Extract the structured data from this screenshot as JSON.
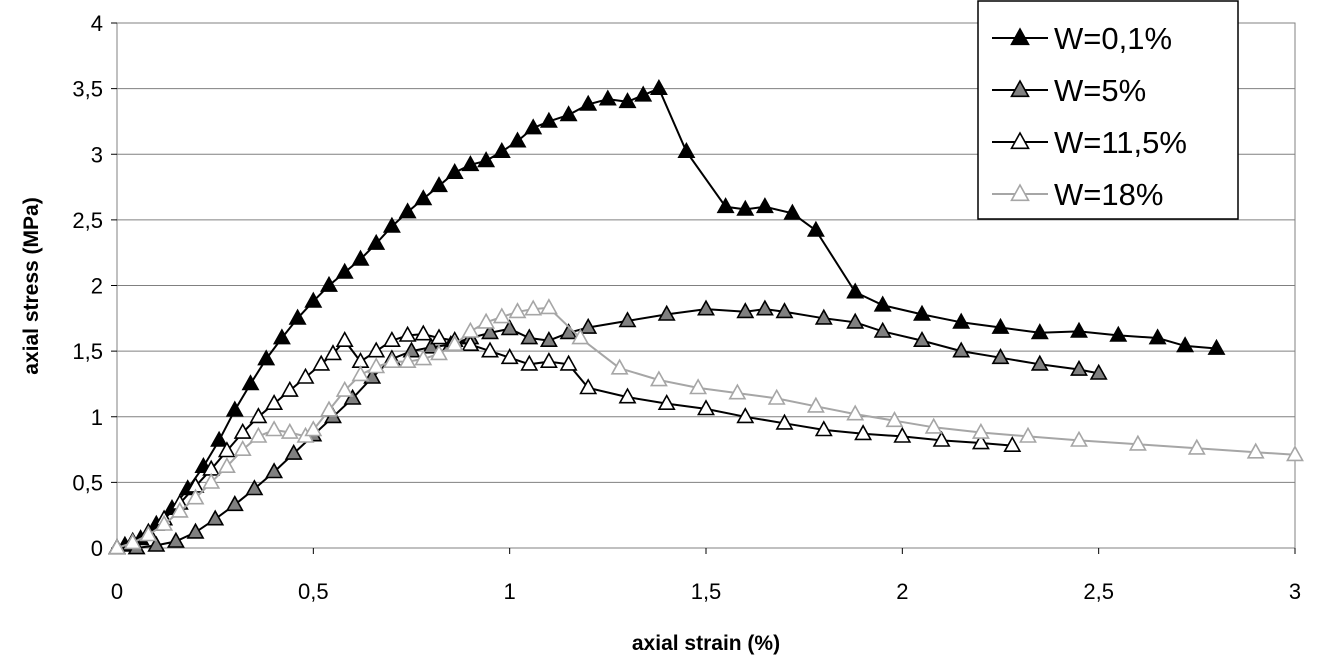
{
  "chart_data": {
    "type": "line",
    "title": "",
    "xlabel": "axial strain (%)",
    "ylabel": "axial stress (MPa)",
    "xlim": [
      0,
      3
    ],
    "ylim": [
      0,
      4
    ],
    "x_ticks": [
      "0",
      "0,5",
      "1",
      "1,5",
      "2",
      "2,5",
      "3"
    ],
    "y_ticks": [
      "0",
      "0,5",
      "1",
      "1,5",
      "2",
      "2,5",
      "3",
      "3,5",
      "4"
    ],
    "grid": "horizontal",
    "legend_position": "top-right",
    "series": [
      {
        "name": "W=0,1%",
        "color": "#000000",
        "marker": "filled-triangle",
        "marker_fill": "#000000",
        "points": [
          [
            0,
            0
          ],
          [
            0.02,
            0.02
          ],
          [
            0.06,
            0.07
          ],
          [
            0.1,
            0.18
          ],
          [
            0.14,
            0.3
          ],
          [
            0.18,
            0.45
          ],
          [
            0.22,
            0.62
          ],
          [
            0.26,
            0.82
          ],
          [
            0.3,
            1.05
          ],
          [
            0.34,
            1.25
          ],
          [
            0.38,
            1.44
          ],
          [
            0.42,
            1.6
          ],
          [
            0.46,
            1.75
          ],
          [
            0.5,
            1.88
          ],
          [
            0.54,
            2.0
          ],
          [
            0.58,
            2.1
          ],
          [
            0.62,
            2.2
          ],
          [
            0.66,
            2.32
          ],
          [
            0.7,
            2.45
          ],
          [
            0.74,
            2.56
          ],
          [
            0.78,
            2.66
          ],
          [
            0.82,
            2.76
          ],
          [
            0.86,
            2.86
          ],
          [
            0.9,
            2.92
          ],
          [
            0.94,
            2.95
          ],
          [
            0.98,
            3.02
          ],
          [
            1.02,
            3.1
          ],
          [
            1.06,
            3.2
          ],
          [
            1.1,
            3.25
          ],
          [
            1.15,
            3.3
          ],
          [
            1.2,
            3.38
          ],
          [
            1.25,
            3.42
          ],
          [
            1.3,
            3.4
          ],
          [
            1.34,
            3.45
          ],
          [
            1.38,
            3.5
          ],
          [
            1.45,
            3.02
          ],
          [
            1.55,
            2.6
          ],
          [
            1.6,
            2.58
          ],
          [
            1.65,
            2.6
          ],
          [
            1.72,
            2.55
          ],
          [
            1.78,
            2.42
          ],
          [
            1.88,
            1.95
          ],
          [
            1.95,
            1.85
          ],
          [
            2.05,
            1.78
          ],
          [
            2.15,
            1.72
          ],
          [
            2.25,
            1.68
          ],
          [
            2.35,
            1.64
          ],
          [
            2.45,
            1.65
          ],
          [
            2.55,
            1.62
          ],
          [
            2.65,
            1.6
          ],
          [
            2.72,
            1.54
          ],
          [
            2.8,
            1.52
          ]
        ]
      },
      {
        "name": "W=5%",
        "color": "#000000",
        "marker": "filled-triangle",
        "marker_fill": "#808080",
        "points": [
          [
            0,
            0
          ],
          [
            0.05,
            0.0
          ],
          [
            0.1,
            0.02
          ],
          [
            0.15,
            0.05
          ],
          [
            0.2,
            0.12
          ],
          [
            0.25,
            0.22
          ],
          [
            0.3,
            0.33
          ],
          [
            0.35,
            0.45
          ],
          [
            0.4,
            0.58
          ],
          [
            0.45,
            0.72
          ],
          [
            0.5,
            0.86
          ],
          [
            0.55,
            1.0
          ],
          [
            0.6,
            1.14
          ],
          [
            0.65,
            1.3
          ],
          [
            0.7,
            1.44
          ],
          [
            0.75,
            1.5
          ],
          [
            0.8,
            1.53
          ],
          [
            0.85,
            1.55
          ],
          [
            0.9,
            1.6
          ],
          [
            0.95,
            1.64
          ],
          [
            1.0,
            1.67
          ],
          [
            1.05,
            1.6
          ],
          [
            1.1,
            1.58
          ],
          [
            1.15,
            1.64
          ],
          [
            1.2,
            1.68
          ],
          [
            1.3,
            1.73
          ],
          [
            1.4,
            1.78
          ],
          [
            1.5,
            1.82
          ],
          [
            1.6,
            1.8
          ],
          [
            1.65,
            1.82
          ],
          [
            1.7,
            1.8
          ],
          [
            1.8,
            1.75
          ],
          [
            1.88,
            1.72
          ],
          [
            1.95,
            1.65
          ],
          [
            2.05,
            1.58
          ],
          [
            2.15,
            1.5
          ],
          [
            2.25,
            1.45
          ],
          [
            2.35,
            1.4
          ],
          [
            2.45,
            1.36
          ],
          [
            2.5,
            1.33
          ]
        ]
      },
      {
        "name": "W=11,5%",
        "color": "#000000",
        "marker": "open-triangle",
        "marker_fill": "#ffffff",
        "points": [
          [
            0,
            0
          ],
          [
            0.04,
            0.05
          ],
          [
            0.08,
            0.12
          ],
          [
            0.12,
            0.22
          ],
          [
            0.16,
            0.34
          ],
          [
            0.2,
            0.47
          ],
          [
            0.24,
            0.6
          ],
          [
            0.28,
            0.74
          ],
          [
            0.32,
            0.88
          ],
          [
            0.36,
            1.0
          ],
          [
            0.4,
            1.1
          ],
          [
            0.44,
            1.2
          ],
          [
            0.48,
            1.3
          ],
          [
            0.52,
            1.4
          ],
          [
            0.55,
            1.48
          ],
          [
            0.58,
            1.58
          ],
          [
            0.62,
            1.42
          ],
          [
            0.66,
            1.5
          ],
          [
            0.7,
            1.58
          ],
          [
            0.74,
            1.62
          ],
          [
            0.78,
            1.63
          ],
          [
            0.82,
            1.6
          ],
          [
            0.86,
            1.58
          ],
          [
            0.9,
            1.55
          ],
          [
            0.95,
            1.5
          ],
          [
            1.0,
            1.45
          ],
          [
            1.05,
            1.4
          ],
          [
            1.1,
            1.42
          ],
          [
            1.15,
            1.4
          ],
          [
            1.2,
            1.22
          ],
          [
            1.3,
            1.15
          ],
          [
            1.4,
            1.1
          ],
          [
            1.5,
            1.06
          ],
          [
            1.6,
            1.0
          ],
          [
            1.7,
            0.95
          ],
          [
            1.8,
            0.9
          ],
          [
            1.9,
            0.87
          ],
          [
            2.0,
            0.85
          ],
          [
            2.1,
            0.82
          ],
          [
            2.2,
            0.8
          ],
          [
            2.28,
            0.78
          ]
        ]
      },
      {
        "name": "W=18%",
        "color": "#a6a6a6",
        "marker": "open-triangle",
        "marker_fill": "#ffffff",
        "points": [
          [
            0,
            0
          ],
          [
            0.04,
            0.04
          ],
          [
            0.08,
            0.1
          ],
          [
            0.12,
            0.18
          ],
          [
            0.16,
            0.28
          ],
          [
            0.2,
            0.38
          ],
          [
            0.24,
            0.5
          ],
          [
            0.28,
            0.62
          ],
          [
            0.32,
            0.75
          ],
          [
            0.36,
            0.85
          ],
          [
            0.4,
            0.9
          ],
          [
            0.44,
            0.88
          ],
          [
            0.48,
            0.85
          ],
          [
            0.5,
            0.9
          ],
          [
            0.54,
            1.05
          ],
          [
            0.58,
            1.2
          ],
          [
            0.62,
            1.32
          ],
          [
            0.66,
            1.38
          ],
          [
            0.7,
            1.42
          ],
          [
            0.74,
            1.42
          ],
          [
            0.78,
            1.44
          ],
          [
            0.82,
            1.48
          ],
          [
            0.86,
            1.55
          ],
          [
            0.9,
            1.65
          ],
          [
            0.94,
            1.72
          ],
          [
            0.98,
            1.76
          ],
          [
            1.02,
            1.8
          ],
          [
            1.06,
            1.82
          ],
          [
            1.1,
            1.83
          ],
          [
            1.18,
            1.6
          ],
          [
            1.28,
            1.37
          ],
          [
            1.38,
            1.28
          ],
          [
            1.48,
            1.22
          ],
          [
            1.58,
            1.18
          ],
          [
            1.68,
            1.14
          ],
          [
            1.78,
            1.08
          ],
          [
            1.88,
            1.02
          ],
          [
            1.98,
            0.97
          ],
          [
            2.08,
            0.92
          ],
          [
            2.2,
            0.88
          ],
          [
            2.32,
            0.85
          ],
          [
            2.45,
            0.82
          ],
          [
            2.6,
            0.79
          ],
          [
            2.75,
            0.76
          ],
          [
            2.9,
            0.73
          ],
          [
            3.0,
            0.71
          ]
        ]
      }
    ]
  }
}
